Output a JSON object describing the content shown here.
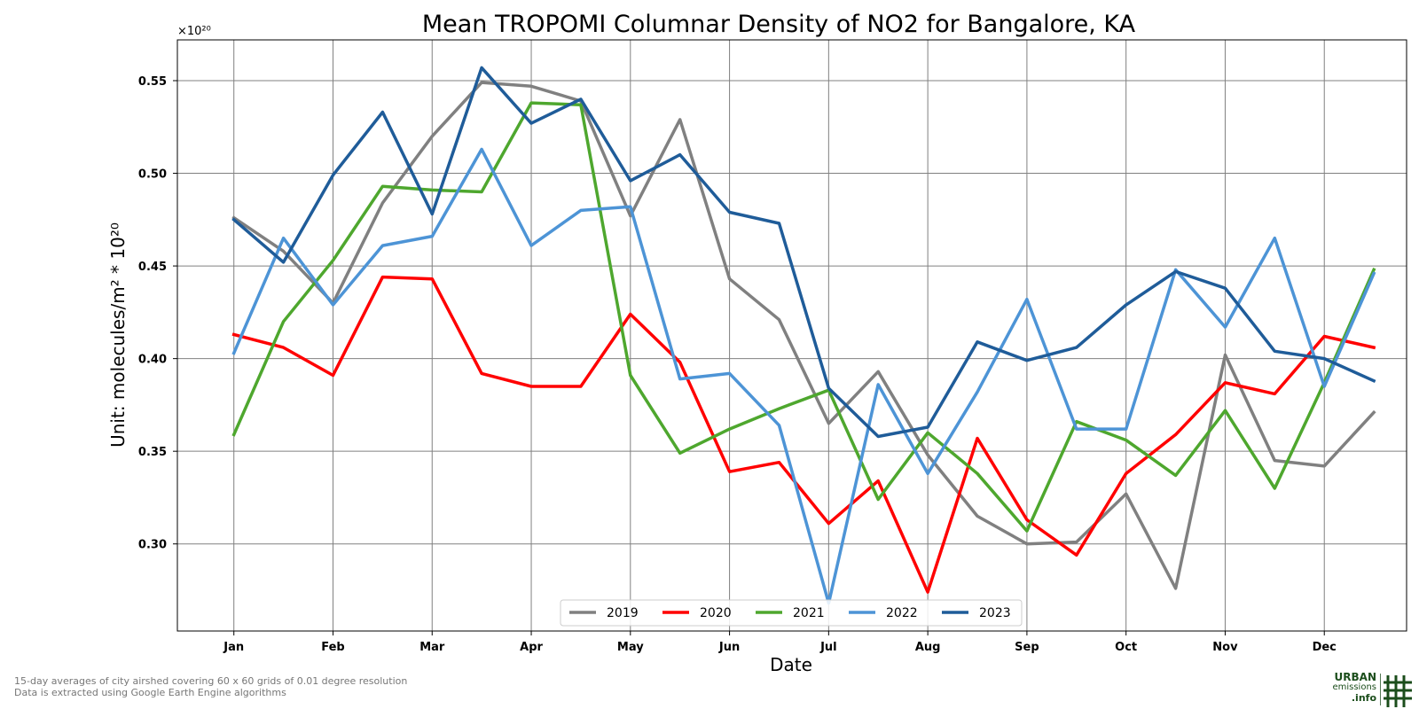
{
  "chart_data": {
    "type": "line",
    "title": "Mean TROPOMI Columnar Density of NO2 for Bangalore, KA",
    "xlabel": "Date",
    "ylabel": "Unit: molecules/m² * 10²⁰",
    "y_multiplier": "×10²⁰",
    "ylim": [
      0.253,
      0.572
    ],
    "yticks": [
      0.3,
      0.35,
      0.4,
      0.45,
      0.5,
      0.55
    ],
    "ytick_labels": [
      "0.30",
      "0.35",
      "0.40",
      "0.45",
      "0.50",
      "0.55"
    ],
    "x": [
      "Jan 1",
      "Jan 16",
      "Feb 1",
      "Feb 16",
      "Mar 1",
      "Mar 16",
      "Apr 1",
      "Apr 16",
      "May 1",
      "May 16",
      "Jun 1",
      "Jun 16",
      "Jul 1",
      "Jul 16",
      "Aug 1",
      "Aug 16",
      "Sep 1",
      "Sep 16",
      "Oct 1",
      "Oct 16",
      "Nov 1",
      "Nov 16",
      "Dec 1",
      "Dec 16"
    ],
    "x_range_months": [
      -0.57,
      11.83
    ],
    "month_ticks": [
      "Jan",
      "Feb",
      "Mar",
      "Apr",
      "May",
      "Jun",
      "Jul",
      "Aug",
      "Sep",
      "Oct",
      "Nov",
      "Dec"
    ],
    "grid": true,
    "legend_position": "bottom-center",
    "series": [
      {
        "name": "2019",
        "color": "#808080",
        "values": [
          0.476,
          0.458,
          0.43,
          0.484,
          0.52,
          0.549,
          0.547,
          0.539,
          0.477,
          0.529,
          0.443,
          0.421,
          0.365,
          0.393,
          0.348,
          0.315,
          0.3,
          0.301,
          0.327,
          0.276,
          0.402,
          0.345,
          0.342,
          0.371
        ]
      },
      {
        "name": "2020",
        "color": "#ff0000",
        "values": [
          0.413,
          0.406,
          0.391,
          0.444,
          0.443,
          0.392,
          0.385,
          0.385,
          0.424,
          0.398,
          0.339,
          0.344,
          0.311,
          0.334,
          0.274,
          0.357,
          0.313,
          0.294,
          0.338,
          0.359,
          0.387,
          0.381,
          0.412,
          0.406
        ]
      },
      {
        "name": "2021",
        "color": "#4ea72e",
        "values": [
          0.359,
          0.42,
          0.453,
          0.493,
          0.491,
          0.49,
          0.538,
          0.537,
          0.391,
          0.349,
          0.362,
          0.373,
          0.383,
          0.324,
          0.36,
          0.338,
          0.307,
          0.366,
          0.356,
          0.337,
          0.372,
          0.33,
          0.387,
          0.448
        ]
      },
      {
        "name": "2022",
        "color": "#4d94d6",
        "values": [
          0.403,
          0.465,
          0.429,
          0.461,
          0.466,
          0.513,
          0.461,
          0.48,
          0.482,
          0.389,
          0.392,
          0.364,
          0.268,
          0.386,
          0.338,
          0.382,
          0.432,
          0.362,
          0.362,
          0.448,
          0.417,
          0.465,
          0.385,
          0.446
        ]
      },
      {
        "name": "2023",
        "color": "#1f5c99",
        "values": [
          0.475,
          0.452,
          0.499,
          0.533,
          0.478,
          0.557,
          0.527,
          0.54,
          0.496,
          0.51,
          0.479,
          0.473,
          0.384,
          0.358,
          0.363,
          0.409,
          0.399,
          0.406,
          0.429,
          0.447,
          0.438,
          0.404,
          0.4,
          0.388
        ]
      }
    ]
  },
  "footer": {
    "line1": "15-day averages of city airshed covering 60 x 60 grids of 0.01 degree resolution",
    "line2": "Data is extracted using Google Earth Engine algorithms"
  },
  "logo": {
    "line1": "URBAN",
    "line2": "emissions",
    "line3": ".info",
    "color_primary": "#1b4d1b"
  }
}
